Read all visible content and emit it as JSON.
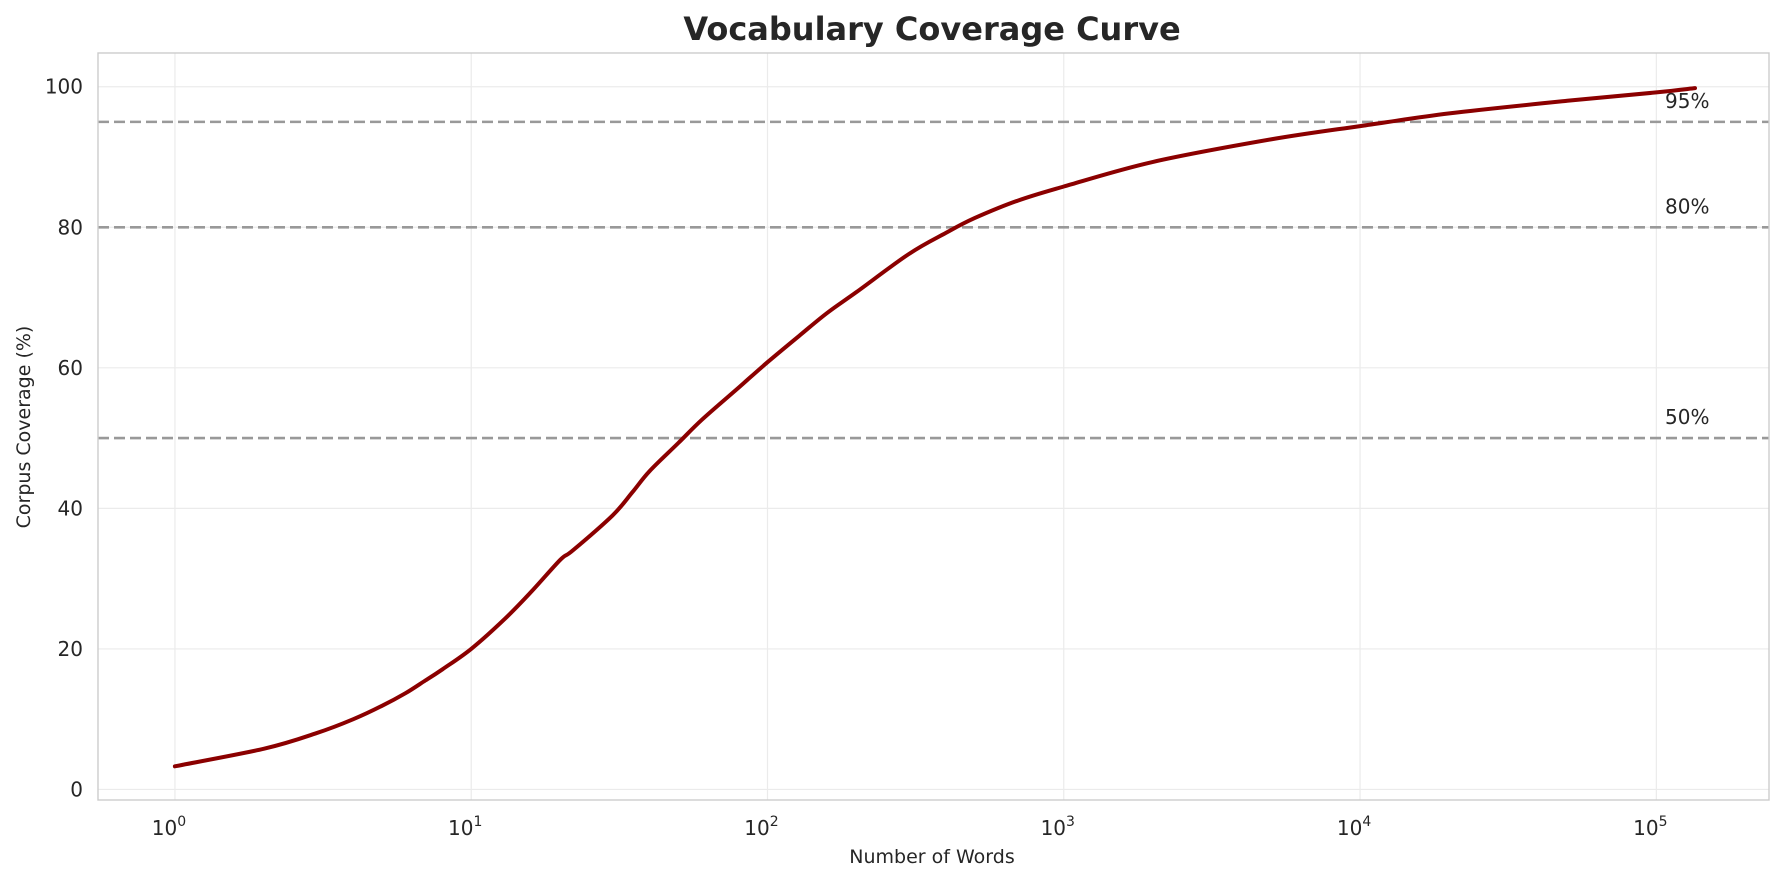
{
  "chart_data": {
    "type": "line",
    "title": "Vocabulary Coverage Curve",
    "xlabel": "Number of Words",
    "ylabel": "Corpus Coverage (%)",
    "x_scale": "log",
    "xlim": [
      0.55,
      240000
    ],
    "ylim": [
      -1.5,
      104.8
    ],
    "grid": true,
    "legend": "none",
    "x_ticks": [
      {
        "base": "10",
        "exp": "0",
        "value": 1
      },
      {
        "base": "10",
        "exp": "1",
        "value": 10
      },
      {
        "base": "10",
        "exp": "2",
        "value": 100
      },
      {
        "base": "10",
        "exp": "3",
        "value": 1000
      },
      {
        "base": "10",
        "exp": "4",
        "value": 10000
      },
      {
        "base": "10",
        "exp": "5",
        "value": 100000
      }
    ],
    "y_ticks": [
      {
        "label": "0",
        "value": 0
      },
      {
        "label": "20",
        "value": 20
      },
      {
        "label": "40",
        "value": 40
      },
      {
        "label": "60",
        "value": 60
      },
      {
        "label": "80",
        "value": 80
      },
      {
        "label": "100",
        "value": 100
      }
    ],
    "reference_lines": [
      {
        "value": 95,
        "label": "95%"
      },
      {
        "value": 80,
        "label": "80%"
      },
      {
        "value": 50,
        "label": "50%"
      }
    ],
    "series": [
      {
        "color": "#8b0000",
        "x": [
          1,
          2,
          3,
          4,
          5,
          6,
          7,
          8,
          10,
          13,
          16,
          20,
          22,
          30,
          35,
          40,
          50,
          60,
          80,
          100,
          130,
          160,
          200,
          300,
          400,
          500,
          700,
          1000,
          2000,
          5000,
          10000,
          20000,
          50000,
          100000,
          135000
        ],
        "y": [
          3.3,
          5.8,
          8.0,
          10.0,
          11.9,
          13.7,
          15.5,
          17.1,
          20.0,
          24.3,
          28.2,
          32.7,
          34.0,
          39.0,
          42.3,
          45.3,
          49.3,
          52.6,
          57.2,
          60.8,
          64.8,
          67.9,
          70.8,
          76.2,
          79.2,
          81.3,
          83.8,
          85.8,
          89.3,
          92.5,
          94.4,
          96.2,
          98.0,
          99.2,
          99.8
        ]
      }
    ]
  }
}
